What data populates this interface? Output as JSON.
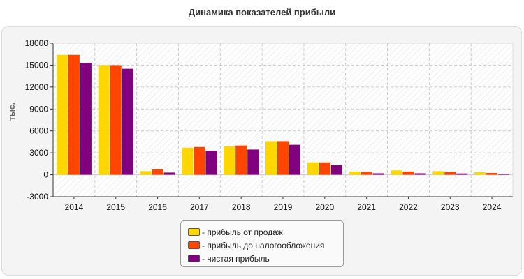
{
  "chart_data": {
    "type": "bar",
    "title": "Динамика показателей прибыли",
    "ylabel": "тыс.",
    "xlabel": "",
    "categories": [
      "2014",
      "2015",
      "2016",
      "2017",
      "2018",
      "2019",
      "2020",
      "2021",
      "2022",
      "2023",
      "2024"
    ],
    "ylim": [
      -3000,
      18000
    ],
    "yticks": [
      18000,
      15000,
      12000,
      9000,
      6000,
      3000,
      0,
      -3000
    ],
    "grid": true,
    "legend_position": "bottom-center",
    "series": [
      {
        "name": "прибыль от продаж",
        "color": "#ffd700",
        "values": [
          16400,
          15000,
          500,
          3700,
          3900,
          4600,
          1700,
          450,
          600,
          500,
          350
        ]
      },
      {
        "name": "прибыль до налогообложения",
        "color": "#ff4500",
        "values": [
          16400,
          15000,
          750,
          3800,
          4000,
          4600,
          1700,
          400,
          450,
          380,
          250
        ]
      },
      {
        "name": "чистая прибыль",
        "color": "#800080",
        "values": [
          15300,
          14500,
          300,
          3300,
          3450,
          4100,
          1300,
          200,
          200,
          180,
          100
        ]
      }
    ]
  }
}
